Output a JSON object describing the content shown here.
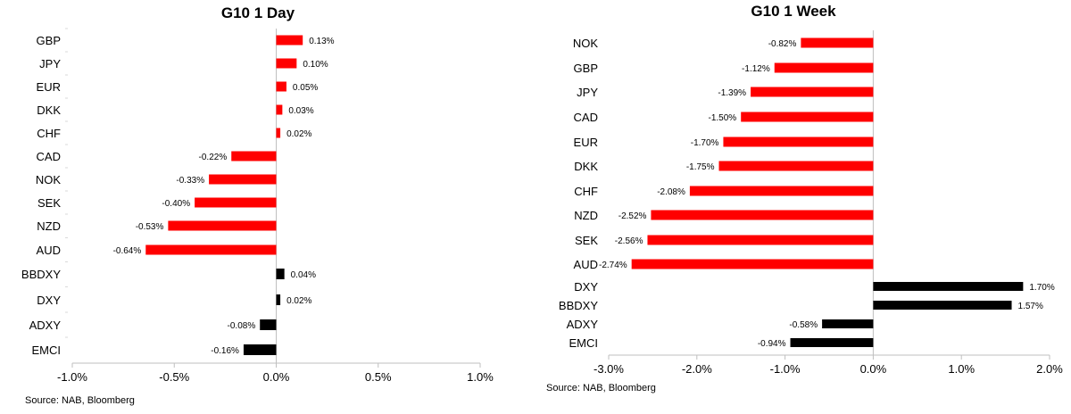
{
  "colors": {
    "positive_fx": "#ff0000",
    "index": "#000000",
    "axis": "#bfbfbf",
    "text": "#000000"
  },
  "chart_data": [
    {
      "type": "bar",
      "orientation": "horizontal",
      "title": "G10 1 Day",
      "categories": [
        "GBP",
        "JPY",
        "EUR",
        "DKK",
        "CHF",
        "CAD",
        "NOK",
        "SEK",
        "NZD",
        "AUD",
        "BBDXY",
        "DXY",
        "ADXY",
        "EMCI"
      ],
      "values": [
        0.13,
        0.1,
        0.05,
        0.03,
        0.02,
        -0.22,
        -0.33,
        -0.4,
        -0.53,
        -0.64,
        0.04,
        0.02,
        -0.08,
        -0.16
      ],
      "data_labels": [
        "0.13%",
        "0.10%",
        "0.05%",
        "0.03%",
        "0.02%",
        "-0.22%",
        "-0.33%",
        "-0.40%",
        "-0.53%",
        "-0.64%",
        "0.04%",
        "0.02%",
        "-0.08%",
        "-0.16%"
      ],
      "bar_colors": [
        "#ff0000",
        "#ff0000",
        "#ff0000",
        "#ff0000",
        "#ff0000",
        "#ff0000",
        "#ff0000",
        "#ff0000",
        "#ff0000",
        "#ff0000",
        "#000000",
        "#000000",
        "#000000",
        "#000000"
      ],
      "xlim": [
        -1.0,
        1.0
      ],
      "xticks": [
        -1.0,
        -0.5,
        0.0,
        0.5,
        1.0
      ],
      "xtick_labels": [
        "-1.0%",
        "-0.5%",
        "0.0%",
        "0.5%",
        "1.0%"
      ],
      "source": "Source: NAB, Bloomberg"
    },
    {
      "type": "bar",
      "orientation": "horizontal",
      "title": "G10 1 Week",
      "categories": [
        "NOK",
        "GBP",
        "JPY",
        "CAD",
        "EUR",
        "DKK",
        "CHF",
        "NZD",
        "SEK",
        "AUD",
        "DXY",
        "BBDXY",
        "ADXY",
        "EMCI"
      ],
      "values": [
        -0.82,
        -1.12,
        -1.39,
        -1.5,
        -1.7,
        -1.75,
        -2.08,
        -2.52,
        -2.56,
        -2.74,
        1.7,
        1.57,
        -0.58,
        -0.94
      ],
      "data_labels": [
        "-0.82%",
        "-1.12%",
        "-1.39%",
        "-1.50%",
        "-1.70%",
        "-1.75%",
        "-2.08%",
        "-2.52%",
        "-2.56%",
        "-2.74%",
        "1.70%",
        "1.57%",
        "-0.58%",
        "-0.94%"
      ],
      "bar_colors": [
        "#ff0000",
        "#ff0000",
        "#ff0000",
        "#ff0000",
        "#ff0000",
        "#ff0000",
        "#ff0000",
        "#ff0000",
        "#ff0000",
        "#ff0000",
        "#000000",
        "#000000",
        "#000000",
        "#000000"
      ],
      "xlim": [
        -3.0,
        2.0
      ],
      "xticks": [
        -3.0,
        -2.0,
        -1.0,
        0.0,
        1.0,
        2.0
      ],
      "xtick_labels": [
        "-3.0%",
        "-2.0%",
        "-1.0%",
        "0.0%",
        "1.0%",
        "2.0%"
      ],
      "source": "Source: NAB, Bloomberg"
    }
  ]
}
